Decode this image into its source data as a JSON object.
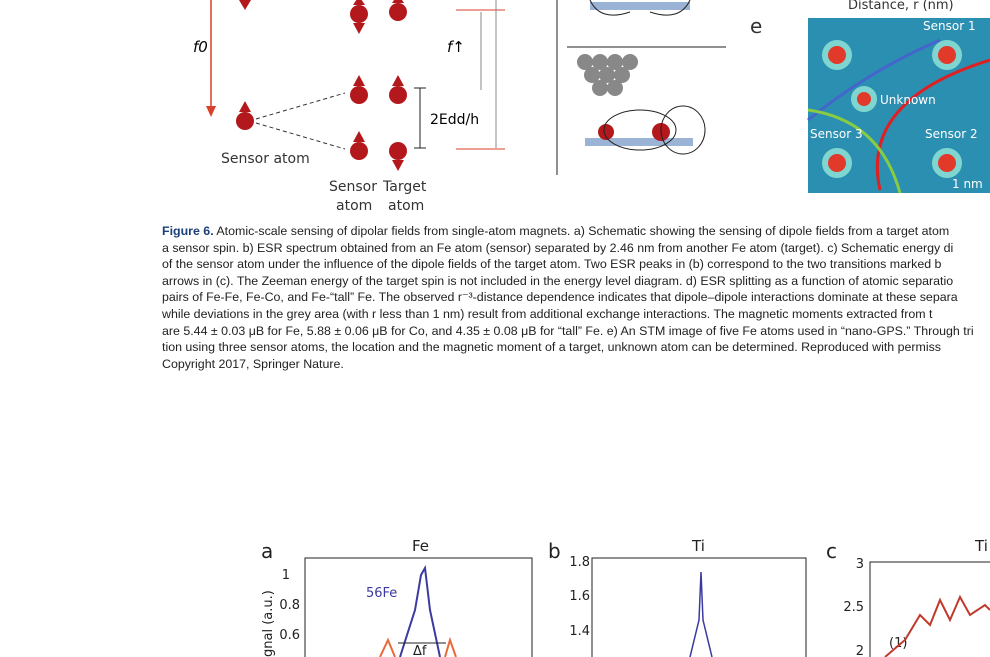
{
  "figure6": {
    "panel_c": {
      "f0": "f0",
      "f_up": "f↑",
      "edd": "2Edd/h",
      "sensor_atom": "Sensor atom",
      "sensor": "Sensor",
      "target": "Target",
      "atom_left": "atom",
      "atom_right": "atom"
    },
    "panel_e": {
      "letter": "e",
      "axis_label": "Distance, r (nm)",
      "sensor1": "Sensor 1",
      "unknown": "Unknown",
      "sensor3": "Sensor 3",
      "sensor2": "Sensor 2",
      "scale": "1 nm"
    }
  },
  "caption": {
    "label": "Figure 6.",
    "lines": [
      " Atomic-scale sensing of dipolar fields from single-atom magnets. a) Schematic showing the sensing of dipole fields from a target atom",
      "a sensor spin. b) ESR spectrum obtained from an Fe atom (sensor) separated by 2.46 nm from another Fe atom (target). c) Schematic energy di",
      "of the sensor atom under the influence of the dipole fields of the target atom. Two ESR peaks in (b) correspond to the two transitions marked b",
      "arrows in (c). The Zeeman energy of the target spin is not included in the energy level diagram. d) ESR splitting as a function of atomic separatio",
      "pairs of Fe-Fe, Fe-Co, and Fe-“tall” Fe. The observed r⁻³-distance dependence indicates that dipole–dipole interactions dominate at these separa",
      "while deviations in the grey area (with r less than 1 nm) result from additional exchange interactions. The magnetic moments extracted from t",
      "are 5.44 ± 0.03 μB for Fe, 5.88 ± 0.06 μB for Co, and 4.35 ± 0.08 μB for “tall” Fe. e) An STM image of five Fe atoms used in “nano-GPS.” Through tri",
      "tion using three sensor atoms, the location and the magnetic moment of a target, unknown atom can be determined. Reproduced with permiss",
      "Copyright 2017, Springer Nature."
    ]
  },
  "figure7": {
    "a": {
      "letter": "a",
      "title": "Fe",
      "yticks": [
        "1",
        "0.8",
        "0.6"
      ],
      "ylabel": "gnal (a.u.)",
      "isotope": "56Fe",
      "delta": "Δf"
    },
    "b": {
      "letter": "b",
      "title": "Ti",
      "yticks": [
        "1.8",
        "1.6",
        "1.4"
      ]
    },
    "c": {
      "letter": "c",
      "title": "Ti",
      "yticks": [
        "3",
        "2.5",
        "2"
      ],
      "note": "(1)"
    }
  }
}
